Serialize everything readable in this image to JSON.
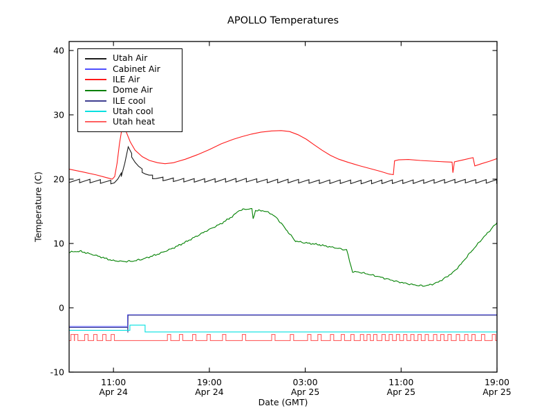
{
  "title": "APOLLO Temperatures",
  "xlabel": "Date (GMT)",
  "ylabel": "Temperature (C)",
  "chart_data": {
    "type": "line",
    "title": "APOLLO Temperatures",
    "xlabel": "Date (GMT)",
    "ylabel": "Temperature (C)",
    "x_unit": "hours since Apr 24 00:00 GMT",
    "x_range": [
      7.3,
      43.0
    ],
    "y_range": [
      -10,
      41.4
    ],
    "y_ticks": [
      -10,
      0,
      10,
      20,
      30,
      40
    ],
    "x_ticks": [
      {
        "pos": 11,
        "time": "11:00",
        "date": "Apr 24"
      },
      {
        "pos": 19,
        "time": "19:00",
        "date": "Apr 24"
      },
      {
        "pos": 27,
        "time": "03:00",
        "date": "Apr 25"
      },
      {
        "pos": 35,
        "time": "11:00",
        "date": "Apr 25"
      },
      {
        "pos": 43,
        "time": "19:00",
        "date": "Apr 25"
      }
    ],
    "grid": false,
    "legend_position": "upper left",
    "series": [
      {
        "name": "Utah Air",
        "color": "#1a1a1a",
        "render": "sawtooth",
        "period_h": 0.87,
        "tooth_depth": 0.56,
        "noise_amp": 0,
        "envelope": [
          [
            7.3,
            19.75
          ],
          [
            9.0,
            19.7
          ],
          [
            10.3,
            19.6
          ],
          [
            11.2,
            19.5
          ],
          [
            11.7,
            20.8
          ],
          [
            12.0,
            23.0
          ],
          [
            12.25,
            25.1
          ],
          [
            12.6,
            23.3
          ],
          [
            13.05,
            22.0
          ],
          [
            13.5,
            21.1
          ],
          [
            14.0,
            20.5
          ],
          [
            14.6,
            20.15
          ],
          [
            15.5,
            19.95
          ],
          [
            16.5,
            19.85
          ],
          [
            18.0,
            19.8
          ],
          [
            20.0,
            19.8
          ],
          [
            22.0,
            19.85
          ],
          [
            24.0,
            19.7
          ],
          [
            26.0,
            19.7
          ],
          [
            28.0,
            19.6
          ],
          [
            30.0,
            19.6
          ],
          [
            32.0,
            19.55
          ],
          [
            34.0,
            19.6
          ],
          [
            36.0,
            19.6
          ],
          [
            38.0,
            19.65
          ],
          [
            40.0,
            19.7
          ],
          [
            41.5,
            19.65
          ],
          [
            43.0,
            19.65
          ]
        ]
      },
      {
        "name": "Cabinet Air",
        "color": "#4d4dff",
        "render": "line",
        "noise_amp": 0,
        "points": [
          [
            7.3,
            -2.9
          ],
          [
            12.18,
            -2.9
          ],
          [
            12.18,
            -1.1
          ],
          [
            43,
            -1.1
          ]
        ]
      },
      {
        "name": "ILE Air",
        "color": "#ff1a1a",
        "render": "line",
        "noise_amp": 0,
        "points": [
          [
            7.3,
            21.55
          ],
          [
            8.5,
            21.1
          ],
          [
            9.6,
            20.65
          ],
          [
            10.5,
            20.2
          ],
          [
            10.9,
            20.0
          ],
          [
            11.1,
            20.4
          ],
          [
            11.3,
            22.5
          ],
          [
            11.5,
            25.5
          ],
          [
            11.7,
            27.8
          ],
          [
            11.85,
            28.4
          ],
          [
            12.05,
            27.4
          ],
          [
            12.4,
            25.8
          ],
          [
            12.8,
            24.5
          ],
          [
            13.4,
            23.5
          ],
          [
            14.0,
            22.9
          ],
          [
            14.7,
            22.55
          ],
          [
            15.3,
            22.4
          ],
          [
            16.0,
            22.55
          ],
          [
            17.0,
            23.1
          ],
          [
            18.0,
            23.8
          ],
          [
            19.0,
            24.6
          ],
          [
            20.0,
            25.5
          ],
          [
            21.0,
            26.2
          ],
          [
            21.7,
            26.6
          ],
          [
            22.5,
            27.0
          ],
          [
            23.3,
            27.3
          ],
          [
            24.2,
            27.5
          ],
          [
            25.0,
            27.55
          ],
          [
            25.7,
            27.4
          ],
          [
            26.4,
            26.9
          ],
          [
            27.1,
            26.2
          ],
          [
            27.7,
            25.4
          ],
          [
            28.4,
            24.5
          ],
          [
            29.1,
            23.7
          ],
          [
            29.8,
            23.1
          ],
          [
            30.6,
            22.6
          ],
          [
            31.5,
            22.1
          ],
          [
            32.5,
            21.6
          ],
          [
            33.3,
            21.2
          ],
          [
            34.0,
            20.8
          ],
          [
            34.35,
            20.7
          ],
          [
            34.45,
            22.85
          ],
          [
            34.8,
            23.0
          ],
          [
            35.6,
            23.05
          ],
          [
            36.6,
            22.9
          ],
          [
            37.6,
            22.8
          ],
          [
            38.6,
            22.7
          ],
          [
            39.25,
            22.65
          ],
          [
            39.32,
            21.0
          ],
          [
            39.45,
            22.7
          ],
          [
            40.2,
            23.0
          ],
          [
            41.0,
            23.35
          ],
          [
            41.15,
            22.05
          ],
          [
            41.7,
            22.4
          ],
          [
            42.4,
            22.8
          ],
          [
            43,
            23.2
          ]
        ]
      },
      {
        "name": "Dome Air",
        "color": "#008000",
        "render": "line",
        "noise_amp": 0.12,
        "points": [
          [
            7.3,
            8.65
          ],
          [
            8.2,
            8.8
          ],
          [
            9.6,
            8.1
          ],
          [
            10.9,
            7.35
          ],
          [
            11.8,
            7.2
          ],
          [
            12.6,
            7.25
          ],
          [
            13.4,
            7.55
          ],
          [
            14.8,
            8.4
          ],
          [
            16.0,
            9.3
          ],
          [
            17.0,
            10.2
          ],
          [
            18.0,
            11.2
          ],
          [
            18.8,
            12.0
          ],
          [
            20.0,
            13.1
          ],
          [
            21.0,
            14.3
          ],
          [
            21.4,
            15.05
          ],
          [
            22.0,
            15.35
          ],
          [
            22.55,
            15.35
          ],
          [
            22.65,
            13.9
          ],
          [
            22.85,
            15.1
          ],
          [
            23.5,
            15.1
          ],
          [
            24.1,
            14.7
          ],
          [
            24.6,
            14.0
          ],
          [
            25.1,
            12.9
          ],
          [
            25.6,
            11.7
          ],
          [
            26.0,
            10.8
          ],
          [
            26.2,
            10.35
          ],
          [
            27.0,
            10.1
          ],
          [
            28.0,
            9.85
          ],
          [
            29.0,
            9.5
          ],
          [
            30.0,
            9.15
          ],
          [
            30.45,
            9.0
          ],
          [
            30.7,
            7.2
          ],
          [
            30.95,
            5.6
          ],
          [
            31.5,
            5.55
          ],
          [
            32.2,
            5.25
          ],
          [
            33.0,
            4.9
          ],
          [
            33.8,
            4.5
          ],
          [
            34.6,
            4.1
          ],
          [
            35.5,
            3.75
          ],
          [
            36.3,
            3.5
          ],
          [
            36.9,
            3.4
          ],
          [
            37.5,
            3.6
          ],
          [
            38.1,
            4.0
          ],
          [
            38.8,
            4.8
          ],
          [
            39.4,
            5.6
          ],
          [
            40.0,
            6.8
          ],
          [
            40.6,
            8.2
          ],
          [
            41.2,
            9.5
          ],
          [
            41.8,
            10.8
          ],
          [
            42.4,
            12.0
          ],
          [
            43.0,
            13.25
          ]
        ]
      },
      {
        "name": "ILE cool",
        "color": "#3d3d8f",
        "render": "line",
        "noise_amp": 0,
        "points": [
          [
            7.3,
            -3.05
          ],
          [
            12.18,
            -3.05
          ],
          [
            12.2,
            -3.85
          ],
          [
            12.22,
            -1.15
          ],
          [
            43,
            -1.15
          ]
        ]
      },
      {
        "name": "Utah cool",
        "color": "#00e0e0",
        "render": "line",
        "noise_amp": 0,
        "points": [
          [
            7.3,
            -3.5
          ],
          [
            12.37,
            -3.5
          ],
          [
            12.37,
            -2.7
          ],
          [
            13.64,
            -2.7
          ],
          [
            13.64,
            -3.75
          ],
          [
            43,
            -3.75
          ]
        ]
      },
      {
        "name": "Utah heat",
        "color": "#ff5f5f",
        "render": "pulse",
        "baseline": -5.1,
        "top": -4.15,
        "pulse_width_h": 0.28,
        "pulse_times": [
          7.45,
          7.75,
          8.6,
          9.35,
          10.1,
          10.8,
          15.5,
          16.5,
          17.6,
          18.8,
          20.1,
          21.75,
          24.2,
          25.75,
          27.2,
          28.05,
          29.1,
          30.0,
          30.8,
          31.6,
          32.15,
          32.7,
          33.4,
          34.0,
          34.6,
          35.2,
          35.8,
          36.4,
          37.0,
          37.7,
          38.3,
          38.9,
          39.6,
          40.3,
          40.9,
          41.7,
          42.6
        ]
      }
    ]
  }
}
